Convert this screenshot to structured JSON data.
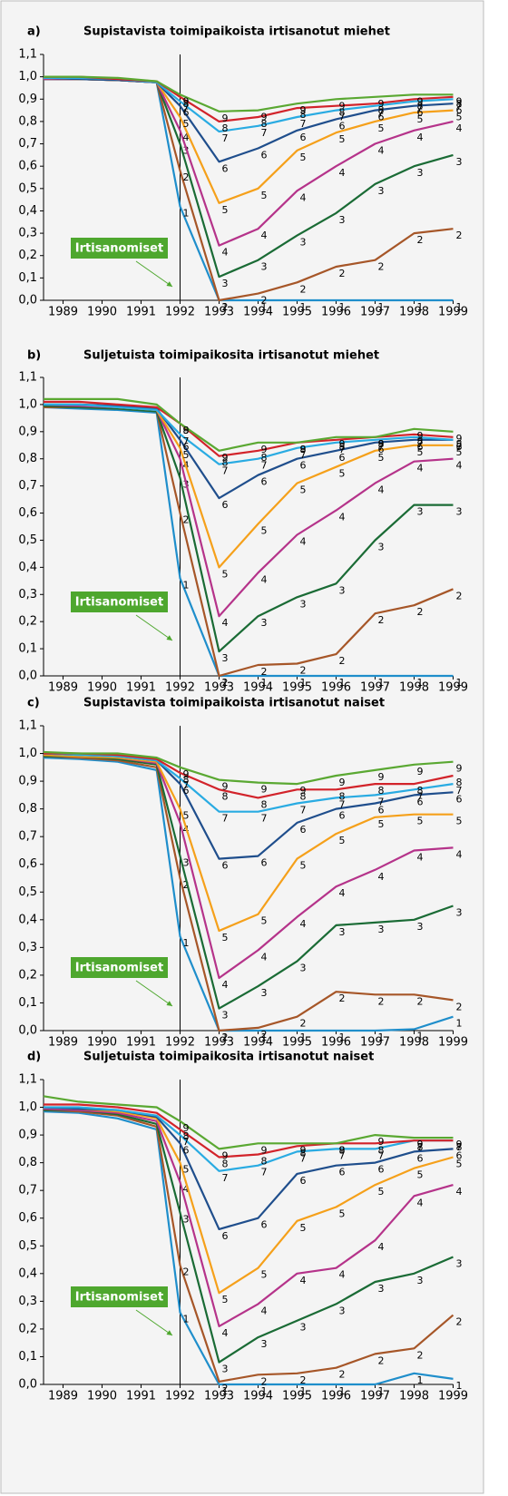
{
  "chart_data": [
    {
      "type": "line",
      "label": "a)",
      "title": "Supistavista toimipaikoista irtisanotut miehet",
      "annotation": "Irtisanomiset",
      "vline": 1992,
      "x": [
        1988.5,
        1989.4,
        1990.4,
        1991.4,
        1992,
        1993,
        1994,
        1995,
        1996,
        1997,
        1998,
        1999
      ],
      "xlim": [
        1988.5,
        1999
      ],
      "xticks": [
        1989,
        1990,
        1991,
        1992,
        1993,
        1994,
        1995,
        1996,
        1997,
        1998,
        1999
      ],
      "ylim": [
        0,
        1.1
      ],
      "yticks": [
        {
          "value": 0,
          "label": "0,0"
        },
        {
          "value": 0.1,
          "label": "0,1"
        },
        {
          "value": 0.2,
          "label": "0,2"
        },
        {
          "value": 0.3,
          "label": "0,3"
        },
        {
          "value": 0.4,
          "label": "0,4"
        },
        {
          "value": 0.5,
          "label": "0,5"
        },
        {
          "value": 0.6,
          "label": "0,6"
        },
        {
          "value": 0.7,
          "label": "0,7"
        },
        {
          "value": 0.8,
          "label": "0,8"
        },
        {
          "value": 0.9,
          "label": "0,9"
        },
        {
          "value": 1.0,
          "label": "1,0"
        },
        {
          "value": 1.1,
          "label": "1,1"
        }
      ],
      "series": [
        {
          "name": "1",
          "color": "#1f8ecb",
          "values": [
            0.99,
            0.99,
            0.985,
            0.975,
            0.42,
            0.0,
            0.0,
            0.0,
            0.0,
            0.0,
            0.0,
            0.0
          ]
        },
        {
          "name": "2",
          "color": "#a65628",
          "values": [
            0.99,
            0.99,
            0.985,
            0.975,
            0.58,
            0.0,
            0.03,
            0.08,
            0.15,
            0.18,
            0.3,
            0.32
          ]
        },
        {
          "name": "3",
          "color": "#1a6b35",
          "values": [
            0.99,
            0.99,
            0.985,
            0.975,
            0.7,
            0.105,
            0.18,
            0.29,
            0.39,
            0.52,
            0.6,
            0.65
          ]
        },
        {
          "name": "4",
          "color": "#b5338a",
          "values": [
            0.99,
            0.99,
            0.985,
            0.975,
            0.76,
            0.245,
            0.32,
            0.49,
            0.6,
            0.7,
            0.76,
            0.8
          ]
        },
        {
          "name": "5",
          "color": "#f5a01a",
          "values": [
            0.995,
            0.99,
            0.985,
            0.975,
            0.82,
            0.435,
            0.5,
            0.67,
            0.75,
            0.8,
            0.84,
            0.85
          ]
        },
        {
          "name": "6",
          "color": "#1f4e8c",
          "values": [
            0.995,
            0.99,
            0.985,
            0.975,
            0.87,
            0.62,
            0.68,
            0.76,
            0.81,
            0.85,
            0.87,
            0.88
          ]
        },
        {
          "name": "7",
          "color": "#29abe2",
          "values": [
            0.995,
            0.995,
            0.99,
            0.975,
            0.89,
            0.755,
            0.78,
            0.82,
            0.85,
            0.87,
            0.89,
            0.9
          ]
        },
        {
          "name": "8",
          "color": "#d2232a",
          "values": [
            1.0,
            1.0,
            0.99,
            0.98,
            0.91,
            0.8,
            0.82,
            0.86,
            0.87,
            0.88,
            0.9,
            0.91
          ]
        },
        {
          "name": "9",
          "color": "#5aa832",
          "values": [
            1.0,
            1.0,
            0.995,
            0.98,
            0.92,
            0.845,
            0.85,
            0.88,
            0.9,
            0.91,
            0.92,
            0.92
          ]
        }
      ]
    },
    {
      "type": "line",
      "label": "b)",
      "title": "Suljetuista toimipaikosita irtisanotut miehet",
      "annotation": "Irtisanomiset",
      "vline": 1992,
      "x": [
        1988.5,
        1989.4,
        1990.4,
        1991.4,
        1992,
        1993,
        1994,
        1995,
        1996,
        1997,
        1998,
        1999
      ],
      "xlim": [
        1988.5,
        1999
      ],
      "xticks": [
        1989,
        1990,
        1991,
        1992,
        1993,
        1994,
        1995,
        1996,
        1997,
        1998,
        1999
      ],
      "ylim": [
        0,
        1.1
      ],
      "yticks": [
        {
          "value": 0,
          "label": "0,0"
        },
        {
          "value": 0.1,
          "label": "0,1"
        },
        {
          "value": 0.2,
          "label": "0,2"
        },
        {
          "value": 0.3,
          "label": "0,3"
        },
        {
          "value": 0.4,
          "label": "0,4"
        },
        {
          "value": 0.5,
          "label": "0,5"
        },
        {
          "value": 0.6,
          "label": "0,6"
        },
        {
          "value": 0.7,
          "label": "0,7"
        },
        {
          "value": 0.8,
          "label": "0,8"
        },
        {
          "value": 0.9,
          "label": "0,9"
        },
        {
          "value": 1.0,
          "label": "1,0"
        },
        {
          "value": 1.1,
          "label": "1,1"
        }
      ],
      "series": [
        {
          "name": "1",
          "color": "#1f8ecb",
          "values": [
            0.99,
            0.985,
            0.98,
            0.97,
            0.36,
            0.0,
            0.0,
            0.0,
            0.0,
            0.0,
            0.0,
            0.0
          ]
        },
        {
          "name": "2",
          "color": "#a65628",
          "values": [
            0.99,
            0.99,
            0.985,
            0.975,
            0.6,
            0.0,
            0.04,
            0.045,
            0.08,
            0.23,
            0.26,
            0.32
          ]
        },
        {
          "name": "3",
          "color": "#1a6b35",
          "values": [
            0.995,
            0.99,
            0.985,
            0.975,
            0.73,
            0.09,
            0.22,
            0.29,
            0.34,
            0.5,
            0.63,
            0.63
          ]
        },
        {
          "name": "4",
          "color": "#b5338a",
          "values": [
            1.0,
            0.995,
            0.99,
            0.98,
            0.8,
            0.22,
            0.38,
            0.52,
            0.61,
            0.71,
            0.79,
            0.8
          ]
        },
        {
          "name": "5",
          "color": "#f5a01a",
          "values": [
            1.0,
            1.0,
            0.99,
            0.98,
            0.84,
            0.4,
            0.56,
            0.71,
            0.77,
            0.83,
            0.85,
            0.85
          ]
        },
        {
          "name": "6",
          "color": "#1f4e8c",
          "values": [
            1.0,
            1.0,
            0.995,
            0.985,
            0.87,
            0.655,
            0.74,
            0.8,
            0.83,
            0.86,
            0.87,
            0.87
          ]
        },
        {
          "name": "7",
          "color": "#29abe2",
          "values": [
            1.0,
            1.0,
            0.99,
            0.98,
            0.89,
            0.78,
            0.8,
            0.84,
            0.86,
            0.87,
            0.88,
            0.87
          ]
        },
        {
          "name": "8",
          "color": "#d2232a",
          "values": [
            1.01,
            1.01,
            1.0,
            0.99,
            0.93,
            0.81,
            0.83,
            0.86,
            0.87,
            0.88,
            0.89,
            0.88
          ]
        },
        {
          "name": "9",
          "color": "#5aa832",
          "values": [
            1.02,
            1.02,
            1.02,
            1.0,
            0.93,
            0.83,
            0.86,
            0.86,
            0.88,
            0.88,
            0.91,
            0.9
          ]
        }
      ]
    },
    {
      "type": "line",
      "label": "c)",
      "title": "Supistavista toimipaikoista irtisanotut naiset",
      "annotation": "Irtisanomiset",
      "vline": 1992,
      "x": [
        1988.5,
        1989.4,
        1990.4,
        1991.4,
        1992,
        1993,
        1994,
        1995,
        1996,
        1997,
        1998,
        1999
      ],
      "xlim": [
        1988.5,
        1999
      ],
      "xticks": [
        1989,
        1990,
        1991,
        1992,
        1993,
        1994,
        1995,
        1996,
        1997,
        1998,
        1999
      ],
      "ylim": [
        0,
        1.1
      ],
      "yticks": [
        {
          "value": 0,
          "label": "0,0"
        },
        {
          "value": 0.1,
          "label": "0,1"
        },
        {
          "value": 0.2,
          "label": "0,2"
        },
        {
          "value": 0.3,
          "label": "0,3"
        },
        {
          "value": 0.4,
          "label": "0,4"
        },
        {
          "value": 0.5,
          "label": "0,5"
        },
        {
          "value": 0.6,
          "label": "0,6"
        },
        {
          "value": 0.7,
          "label": "0,7"
        },
        {
          "value": 0.8,
          "label": "0,8"
        },
        {
          "value": 0.9,
          "label": "0,9"
        },
        {
          "value": 1.0,
          "label": "1,0"
        },
        {
          "value": 1.1,
          "label": "1,1"
        }
      ],
      "series": [
        {
          "name": "1",
          "color": "#1f8ecb",
          "values": [
            0.985,
            0.98,
            0.97,
            0.94,
            0.34,
            0.0,
            0.0,
            0.0,
            0.0,
            0.0,
            0.005,
            0.05
          ]
        },
        {
          "name": "2",
          "color": "#a65628",
          "values": [
            0.99,
            0.985,
            0.975,
            0.95,
            0.55,
            0.0,
            0.01,
            0.05,
            0.14,
            0.13,
            0.13,
            0.11
          ]
        },
        {
          "name": "3",
          "color": "#1a6b35",
          "values": [
            0.99,
            0.99,
            0.98,
            0.96,
            0.63,
            0.08,
            0.16,
            0.25,
            0.38,
            0.39,
            0.4,
            0.45
          ]
        },
        {
          "name": "4",
          "color": "#b5338a",
          "values": [
            0.995,
            0.99,
            0.985,
            0.965,
            0.75,
            0.19,
            0.29,
            0.41,
            0.52,
            0.58,
            0.65,
            0.66
          ]
        },
        {
          "name": "5",
          "color": "#f5a01a",
          "values": [
            0.995,
            0.99,
            0.985,
            0.97,
            0.8,
            0.36,
            0.42,
            0.62,
            0.71,
            0.77,
            0.78,
            0.78
          ]
        },
        {
          "name": "6",
          "color": "#1f4e8c",
          "values": [
            1.0,
            0.995,
            0.99,
            0.975,
            0.89,
            0.62,
            0.63,
            0.75,
            0.8,
            0.82,
            0.85,
            0.86
          ]
        },
        {
          "name": "7",
          "color": "#29abe2",
          "values": [
            1.0,
            0.995,
            0.99,
            0.975,
            0.91,
            0.79,
            0.79,
            0.82,
            0.84,
            0.85,
            0.87,
            0.89
          ]
        },
        {
          "name": "8",
          "color": "#d2232a",
          "values": [
            1.0,
            1.0,
            0.995,
            0.98,
            0.93,
            0.87,
            0.84,
            0.87,
            0.87,
            0.89,
            0.89,
            0.92
          ]
        },
        {
          "name": "9",
          "color": "#5aa832",
          "values": [
            1.005,
            1.0,
            1.0,
            0.985,
            0.95,
            0.905,
            0.895,
            0.89,
            0.92,
            0.94,
            0.96,
            0.97
          ]
        }
      ]
    },
    {
      "type": "line",
      "label": "d)",
      "title": "Suljetuista toimipaikosita irtisanotut naiset",
      "annotation": "Irtisanomiset",
      "vline": 1992,
      "x": [
        1988.5,
        1989.4,
        1990.4,
        1991.4,
        1992,
        1993,
        1994,
        1995,
        1996,
        1997,
        1998,
        1999
      ],
      "xlim": [
        1988.5,
        1999
      ],
      "xticks": [
        1989,
        1990,
        1991,
        1992,
        1993,
        1994,
        1995,
        1996,
        1997,
        1998,
        1999
      ],
      "ylim": [
        0,
        1.1
      ],
      "yticks": [
        {
          "value": 0,
          "label": "0,0"
        },
        {
          "value": 0.1,
          "label": "0,1"
        },
        {
          "value": 0.2,
          "label": "0,2"
        },
        {
          "value": 0.3,
          "label": "0,3"
        },
        {
          "value": 0.4,
          "label": "0,4"
        },
        {
          "value": 0.5,
          "label": "0,5"
        },
        {
          "value": 0.6,
          "label": "0,6"
        },
        {
          "value": 0.7,
          "label": "0,7"
        },
        {
          "value": 0.8,
          "label": "0,8"
        },
        {
          "value": 0.9,
          "label": "0,9"
        },
        {
          "value": 1.0,
          "label": "1,0"
        },
        {
          "value": 1.1,
          "label": "1,1"
        }
      ],
      "series": [
        {
          "name": "1",
          "color": "#1f8ecb",
          "values": [
            0.985,
            0.98,
            0.96,
            0.92,
            0.26,
            0.0,
            0.0,
            0.0,
            0.0,
            0.0,
            0.04,
            0.02
          ]
        },
        {
          "name": "2",
          "color": "#a65628",
          "values": [
            0.99,
            0.985,
            0.97,
            0.93,
            0.43,
            0.01,
            0.035,
            0.04,
            0.06,
            0.11,
            0.13,
            0.25
          ]
        },
        {
          "name": "3",
          "color": "#1a6b35",
          "values": [
            0.99,
            0.99,
            0.975,
            0.94,
            0.62,
            0.08,
            0.17,
            0.23,
            0.29,
            0.37,
            0.4,
            0.46
          ]
        },
        {
          "name": "4",
          "color": "#b5338a",
          "values": [
            0.995,
            0.99,
            0.98,
            0.95,
            0.73,
            0.21,
            0.29,
            0.4,
            0.42,
            0.52,
            0.68,
            0.72
          ]
        },
        {
          "name": "5",
          "color": "#f5a01a",
          "values": [
            1.0,
            0.995,
            0.985,
            0.96,
            0.8,
            0.33,
            0.42,
            0.59,
            0.64,
            0.72,
            0.78,
            0.82
          ]
        },
        {
          "name": "6",
          "color": "#1f4e8c",
          "values": [
            1.0,
            0.995,
            0.99,
            0.965,
            0.87,
            0.56,
            0.6,
            0.76,
            0.79,
            0.8,
            0.84,
            0.85
          ]
        },
        {
          "name": "7",
          "color": "#29abe2",
          "values": [
            1.0,
            1.0,
            0.99,
            0.97,
            0.9,
            0.77,
            0.79,
            0.84,
            0.85,
            0.85,
            0.88,
            0.88
          ]
        },
        {
          "name": "8",
          "color": "#d2232a",
          "values": [
            1.01,
            1.01,
            1.0,
            0.98,
            0.92,
            0.82,
            0.83,
            0.86,
            0.87,
            0.87,
            0.88,
            0.88
          ]
        },
        {
          "name": "9",
          "color": "#5aa832",
          "values": [
            1.04,
            1.02,
            1.01,
            1.0,
            0.95,
            0.85,
            0.87,
            0.87,
            0.87,
            0.9,
            0.89,
            0.89
          ]
        }
      ]
    }
  ]
}
